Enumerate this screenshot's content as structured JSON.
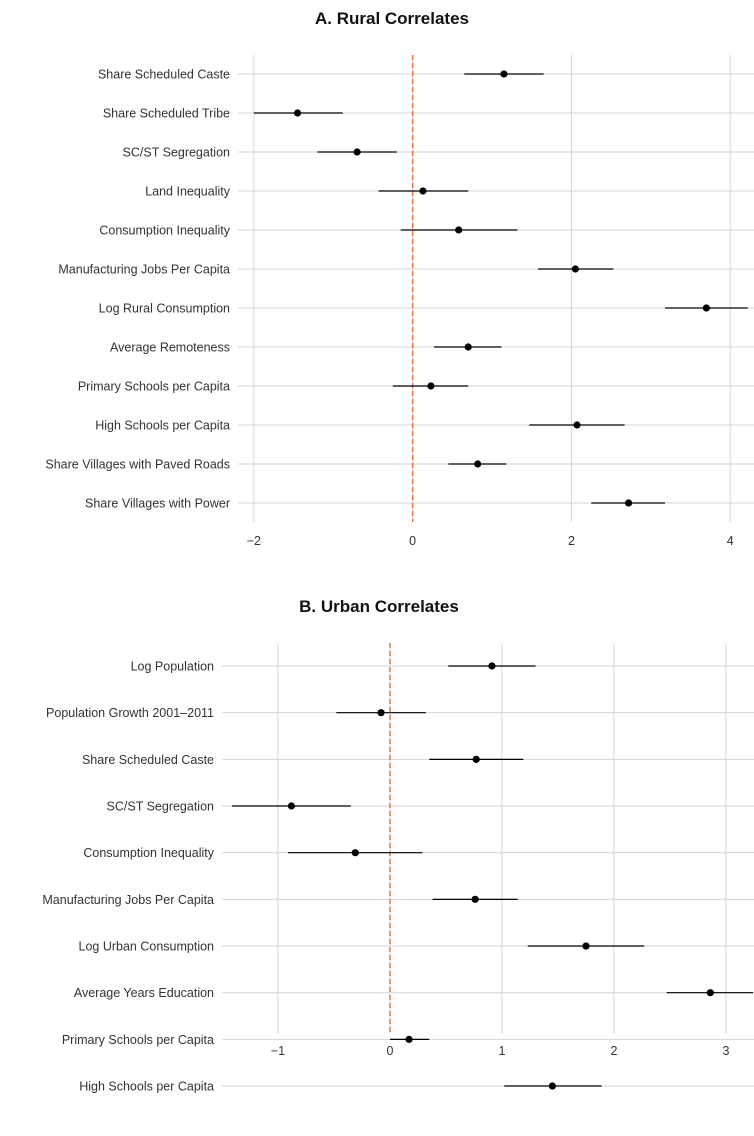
{
  "chart_data": [
    {
      "type": "scatter",
      "subtype": "coefficient-plot",
      "title": "A. Rural Correlates",
      "xlim": [
        -2.2,
        4.3
      ],
      "xticks": [
        -2,
        0,
        2,
        4
      ],
      "xtick_labels": [
        "−2",
        "0",
        "2",
        "4"
      ],
      "reference_line": 0,
      "reference_line_style": "dashed",
      "colors": {
        "reference_line": "#e8663d",
        "points": "#000000",
        "grid": "#d6d6d6"
      },
      "grid": true,
      "rows": [
        {
          "label": "Share Scheduled Caste",
          "estimate": 1.15,
          "ci_low": 0.65,
          "ci_high": 1.65
        },
        {
          "label": "Share Scheduled Tribe",
          "estimate": -1.45,
          "ci_low": -2.0,
          "ci_high": -0.88
        },
        {
          "label": "SC/ST Segregation",
          "estimate": -0.7,
          "ci_low": -1.2,
          "ci_high": -0.2
        },
        {
          "label": "Land Inequality",
          "estimate": 0.13,
          "ci_low": -0.43,
          "ci_high": 0.7
        },
        {
          "label": "Consumption Inequality",
          "estimate": 0.58,
          "ci_low": -0.15,
          "ci_high": 1.32
        },
        {
          "label": "Manufacturing Jobs Per Capita",
          "estimate": 2.05,
          "ci_low": 1.58,
          "ci_high": 2.53
        },
        {
          "label": "Log Rural Consumption",
          "estimate": 3.7,
          "ci_low": 3.18,
          "ci_high": 4.22
        },
        {
          "label": "Average Remoteness",
          "estimate": 0.7,
          "ci_low": 0.27,
          "ci_high": 1.12
        },
        {
          "label": "Primary Schools per Capita",
          "estimate": 0.23,
          "ci_low": -0.25,
          "ci_high": 0.7
        },
        {
          "label": "High Schools per Capita",
          "estimate": 2.07,
          "ci_low": 1.47,
          "ci_high": 2.67
        },
        {
          "label": "Share Villages with Paved Roads",
          "estimate": 0.82,
          "ci_low": 0.45,
          "ci_high": 1.18
        },
        {
          "label": "Share Villages with Power",
          "estimate": 2.72,
          "ci_low": 2.25,
          "ci_high": 3.18
        }
      ]
    },
    {
      "type": "scatter",
      "subtype": "coefficient-plot",
      "title": "B. Urban Correlates",
      "xlim": [
        -1.5,
        3.25
      ],
      "xticks": [
        -1,
        0,
        1,
        2,
        3
      ],
      "xtick_labels": [
        "−1",
        "0",
        "1",
        "2",
        "3"
      ],
      "reference_line": 0,
      "reference_line_style": "dashed",
      "colors": {
        "reference_line": "#e8663d",
        "points": "#000000",
        "grid": "#d6d6d6"
      },
      "grid": true,
      "rows": [
        {
          "label": "Log Population",
          "estimate": 0.91,
          "ci_low": 0.52,
          "ci_high": 1.3
        },
        {
          "label": "Population Growth 2001–2011",
          "estimate": -0.08,
          "ci_low": -0.48,
          "ci_high": 0.32
        },
        {
          "label": "Share Scheduled Caste",
          "estimate": 0.77,
          "ci_low": 0.35,
          "ci_high": 1.19
        },
        {
          "label": "SC/ST Segregation",
          "estimate": -0.88,
          "ci_low": -1.41,
          "ci_high": -0.35
        },
        {
          "label": "Consumption Inequality",
          "estimate": -0.31,
          "ci_low": -0.91,
          "ci_high": 0.29
        },
        {
          "label": "Manufacturing Jobs Per Capita",
          "estimate": 0.76,
          "ci_low": 0.38,
          "ci_high": 1.14
        },
        {
          "label": "Log Urban Consumption",
          "estimate": 1.75,
          "ci_low": 1.23,
          "ci_high": 2.27
        },
        {
          "label": "Average Years Education",
          "estimate": 2.86,
          "ci_low": 2.47,
          "ci_high": 3.25
        },
        {
          "label": "Primary Schools per Capita",
          "estimate": 0.17,
          "ci_low": 0.0,
          "ci_high": 0.35
        },
        {
          "label": "High Schools per Capita",
          "estimate": 1.45,
          "ci_low": 1.02,
          "ci_high": 1.89
        }
      ]
    }
  ]
}
